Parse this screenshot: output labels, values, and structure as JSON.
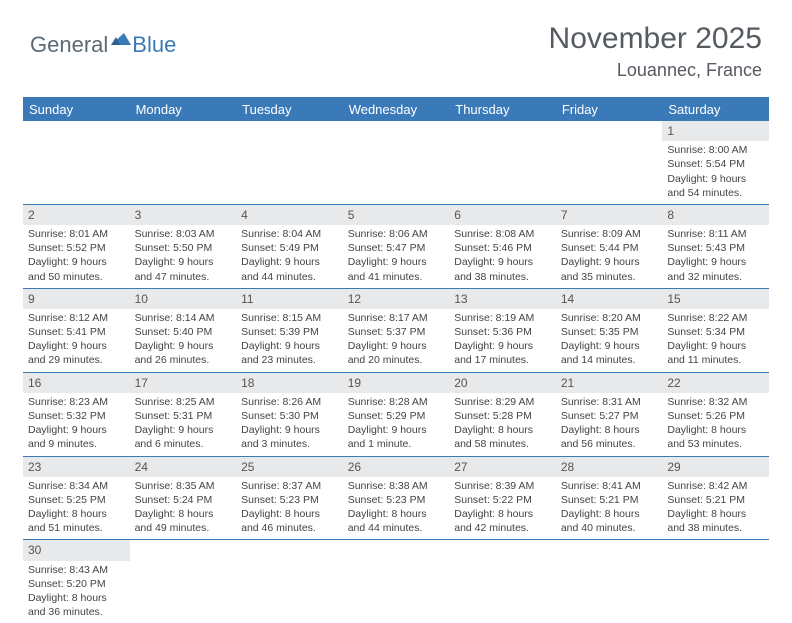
{
  "logo": {
    "text_general": "General",
    "text_blue": "Blue"
  },
  "title": "November 2025",
  "location": "Louannec, France",
  "colors": {
    "header_bg": "#3b7ab8",
    "header_text": "#ffffff",
    "daynum_bg": "#e8e9ea",
    "cell_border": "#3b7ab8",
    "body_text": "#444444",
    "title_text": "#555b61"
  },
  "weekdays": [
    "Sunday",
    "Monday",
    "Tuesday",
    "Wednesday",
    "Thursday",
    "Friday",
    "Saturday"
  ],
  "weeks": [
    [
      null,
      null,
      null,
      null,
      null,
      null,
      {
        "n": "1",
        "sr": "Sunrise: 8:00 AM",
        "ss": "Sunset: 5:54 PM",
        "d1": "Daylight: 9 hours",
        "d2": "and 54 minutes."
      }
    ],
    [
      {
        "n": "2",
        "sr": "Sunrise: 8:01 AM",
        "ss": "Sunset: 5:52 PM",
        "d1": "Daylight: 9 hours",
        "d2": "and 50 minutes."
      },
      {
        "n": "3",
        "sr": "Sunrise: 8:03 AM",
        "ss": "Sunset: 5:50 PM",
        "d1": "Daylight: 9 hours",
        "d2": "and 47 minutes."
      },
      {
        "n": "4",
        "sr": "Sunrise: 8:04 AM",
        "ss": "Sunset: 5:49 PM",
        "d1": "Daylight: 9 hours",
        "d2": "and 44 minutes."
      },
      {
        "n": "5",
        "sr": "Sunrise: 8:06 AM",
        "ss": "Sunset: 5:47 PM",
        "d1": "Daylight: 9 hours",
        "d2": "and 41 minutes."
      },
      {
        "n": "6",
        "sr": "Sunrise: 8:08 AM",
        "ss": "Sunset: 5:46 PM",
        "d1": "Daylight: 9 hours",
        "d2": "and 38 minutes."
      },
      {
        "n": "7",
        "sr": "Sunrise: 8:09 AM",
        "ss": "Sunset: 5:44 PM",
        "d1": "Daylight: 9 hours",
        "d2": "and 35 minutes."
      },
      {
        "n": "8",
        "sr": "Sunrise: 8:11 AM",
        "ss": "Sunset: 5:43 PM",
        "d1": "Daylight: 9 hours",
        "d2": "and 32 minutes."
      }
    ],
    [
      {
        "n": "9",
        "sr": "Sunrise: 8:12 AM",
        "ss": "Sunset: 5:41 PM",
        "d1": "Daylight: 9 hours",
        "d2": "and 29 minutes."
      },
      {
        "n": "10",
        "sr": "Sunrise: 8:14 AM",
        "ss": "Sunset: 5:40 PM",
        "d1": "Daylight: 9 hours",
        "d2": "and 26 minutes."
      },
      {
        "n": "11",
        "sr": "Sunrise: 8:15 AM",
        "ss": "Sunset: 5:39 PM",
        "d1": "Daylight: 9 hours",
        "d2": "and 23 minutes."
      },
      {
        "n": "12",
        "sr": "Sunrise: 8:17 AM",
        "ss": "Sunset: 5:37 PM",
        "d1": "Daylight: 9 hours",
        "d2": "and 20 minutes."
      },
      {
        "n": "13",
        "sr": "Sunrise: 8:19 AM",
        "ss": "Sunset: 5:36 PM",
        "d1": "Daylight: 9 hours",
        "d2": "and 17 minutes."
      },
      {
        "n": "14",
        "sr": "Sunrise: 8:20 AM",
        "ss": "Sunset: 5:35 PM",
        "d1": "Daylight: 9 hours",
        "d2": "and 14 minutes."
      },
      {
        "n": "15",
        "sr": "Sunrise: 8:22 AM",
        "ss": "Sunset: 5:34 PM",
        "d1": "Daylight: 9 hours",
        "d2": "and 11 minutes."
      }
    ],
    [
      {
        "n": "16",
        "sr": "Sunrise: 8:23 AM",
        "ss": "Sunset: 5:32 PM",
        "d1": "Daylight: 9 hours",
        "d2": "and 9 minutes."
      },
      {
        "n": "17",
        "sr": "Sunrise: 8:25 AM",
        "ss": "Sunset: 5:31 PM",
        "d1": "Daylight: 9 hours",
        "d2": "and 6 minutes."
      },
      {
        "n": "18",
        "sr": "Sunrise: 8:26 AM",
        "ss": "Sunset: 5:30 PM",
        "d1": "Daylight: 9 hours",
        "d2": "and 3 minutes."
      },
      {
        "n": "19",
        "sr": "Sunrise: 8:28 AM",
        "ss": "Sunset: 5:29 PM",
        "d1": "Daylight: 9 hours",
        "d2": "and 1 minute."
      },
      {
        "n": "20",
        "sr": "Sunrise: 8:29 AM",
        "ss": "Sunset: 5:28 PM",
        "d1": "Daylight: 8 hours",
        "d2": "and 58 minutes."
      },
      {
        "n": "21",
        "sr": "Sunrise: 8:31 AM",
        "ss": "Sunset: 5:27 PM",
        "d1": "Daylight: 8 hours",
        "d2": "and 56 minutes."
      },
      {
        "n": "22",
        "sr": "Sunrise: 8:32 AM",
        "ss": "Sunset: 5:26 PM",
        "d1": "Daylight: 8 hours",
        "d2": "and 53 minutes."
      }
    ],
    [
      {
        "n": "23",
        "sr": "Sunrise: 8:34 AM",
        "ss": "Sunset: 5:25 PM",
        "d1": "Daylight: 8 hours",
        "d2": "and 51 minutes."
      },
      {
        "n": "24",
        "sr": "Sunrise: 8:35 AM",
        "ss": "Sunset: 5:24 PM",
        "d1": "Daylight: 8 hours",
        "d2": "and 49 minutes."
      },
      {
        "n": "25",
        "sr": "Sunrise: 8:37 AM",
        "ss": "Sunset: 5:23 PM",
        "d1": "Daylight: 8 hours",
        "d2": "and 46 minutes."
      },
      {
        "n": "26",
        "sr": "Sunrise: 8:38 AM",
        "ss": "Sunset: 5:23 PM",
        "d1": "Daylight: 8 hours",
        "d2": "and 44 minutes."
      },
      {
        "n": "27",
        "sr": "Sunrise: 8:39 AM",
        "ss": "Sunset: 5:22 PM",
        "d1": "Daylight: 8 hours",
        "d2": "and 42 minutes."
      },
      {
        "n": "28",
        "sr": "Sunrise: 8:41 AM",
        "ss": "Sunset: 5:21 PM",
        "d1": "Daylight: 8 hours",
        "d2": "and 40 minutes."
      },
      {
        "n": "29",
        "sr": "Sunrise: 8:42 AM",
        "ss": "Sunset: 5:21 PM",
        "d1": "Daylight: 8 hours",
        "d2": "and 38 minutes."
      }
    ],
    [
      {
        "n": "30",
        "sr": "Sunrise: 8:43 AM",
        "ss": "Sunset: 5:20 PM",
        "d1": "Daylight: 8 hours",
        "d2": "and 36 minutes."
      },
      null,
      null,
      null,
      null,
      null,
      null
    ]
  ]
}
